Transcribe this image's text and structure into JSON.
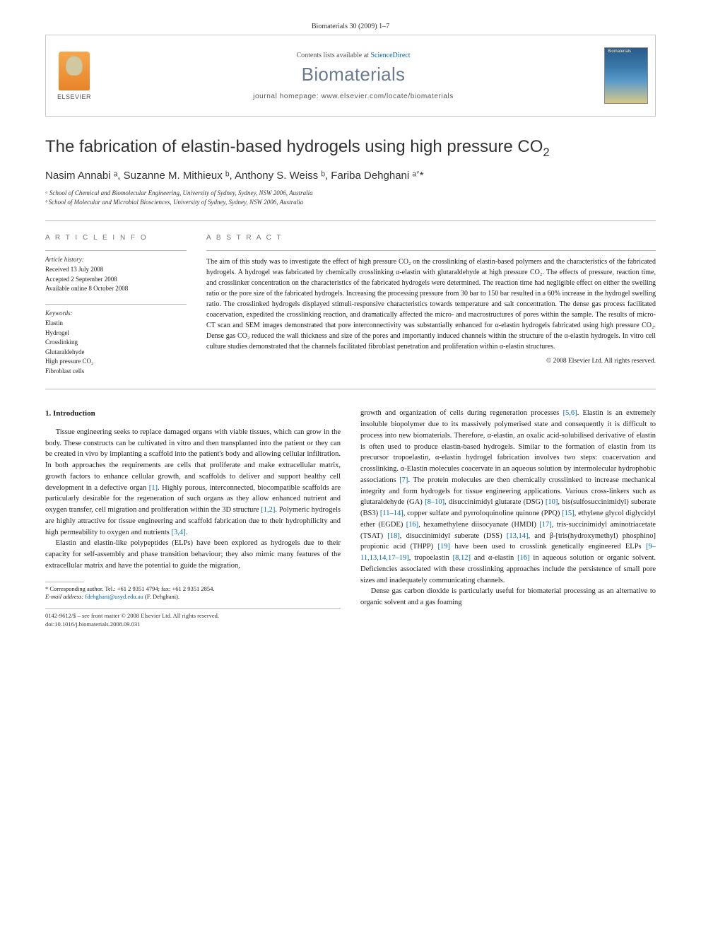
{
  "citation": "Biomaterials 30 (2009) 1–7",
  "header": {
    "publisher_label": "ELSEVIER",
    "contents_prefix": "Contents lists available at ",
    "contents_link": "ScienceDirect",
    "journal": "Biomaterials",
    "homepage_prefix": "journal homepage: ",
    "homepage_url": "www.elsevier.com/locate/biomaterials",
    "cover_label": "Biomaterials"
  },
  "article": {
    "title_html": "The fabrication of elastin-based hydrogels using high pressure CO",
    "title_sub": "2",
    "authors_list": "Nasim Annabi ᵃ, Suzanne M. Mithieux ᵇ, Anthony S. Weiss ᵇ, Fariba Dehghani ᵃ٬*",
    "affiliations": [
      "ᵃ School of Chemical and Biomolecular Engineering, University of Sydney, Sydney, NSW 2006, Australia",
      "ᵇ School of Molecular and Microbial Biosciences, University of Sydney, Sydney, NSW 2006, Australia"
    ]
  },
  "info": {
    "heading": "A R T I C L E   I N F O",
    "history_label": "Article history:",
    "received": "Received 13 July 2008",
    "accepted": "Accepted 2 September 2008",
    "online": "Available online 8 October 2008",
    "keywords_label": "Keywords:",
    "keywords": [
      "Elastin",
      "Hydrogel",
      "Crosslinking",
      "Glutaraldehyde",
      "High pressure CO₂",
      "Fibroblast cells"
    ]
  },
  "abstract": {
    "heading": "A B S T R A C T",
    "text": "The aim of this study was to investigate the effect of high pressure CO₂ on the crosslinking of elastin-based polymers and the characteristics of the fabricated hydrogels. A hydrogel was fabricated by chemically crosslinking α-elastin with glutaraldehyde at high pressure CO₂. The effects of pressure, reaction time, and crosslinker concentration on the characteristics of the fabricated hydrogels were determined. The reaction time had negligible effect on either the swelling ratio or the pore size of the fabricated hydrogels. Increasing the processing pressure from 30 bar to 150 bar resulted in a 60% increase in the hydrogel swelling ratio. The crosslinked hydrogels displayed stimuli-responsive characteristics towards temperature and salt concentration. The dense gas process facilitated coacervation, expedited the crosslinking reaction, and dramatically affected the micro- and macrostructures of pores within the sample. The results of micro-CT scan and SEM images demonstrated that pore interconnectivity was substantially enhanced for α-elastin hydrogels fabricated using high pressure CO₂. Dense gas CO₂ reduced the wall thickness and size of the pores and importantly induced channels within the structure of the α-elastin hydrogels. In vitro cell culture studies demonstrated that the channels facilitated fibroblast penetration and proliferation within α-elastin structures.",
    "copyright": "© 2008 Elsevier Ltd. All rights reserved."
  },
  "body": {
    "section_heading": "1.  Introduction",
    "col1_p1": "Tissue engineering seeks to replace damaged organs with viable tissues, which can grow in the body. These constructs can be cultivated in vitro and then transplanted into the patient or they can be created in vivo by implanting a scaffold into the patient's body and allowing cellular infiltration. In both approaches the requirements are cells that proliferate and make extracellular matrix, growth factors to enhance cellular growth, and scaffolds to deliver and support healthy cell development in a defective organ [1]. Highly porous, interconnected, biocompatible scaffolds are particularly desirable for the regeneration of such organs as they allow enhanced nutrient and oxygen transfer, cell migration and proliferation within the 3D structure [1,2]. Polymeric hydrogels are highly attractive for tissue engineering and scaffold fabrication due to their hydrophilicity and high permeability to oxygen and nutrients [3,4].",
    "col1_p2": "Elastin and elastin-like polypeptides (ELPs) have been explored as hydrogels due to their capacity for self-assembly and phase transition behaviour; they also mimic many features of the extracellular matrix and have the potential to guide the migration,",
    "col2_p1": "growth and organization of cells during regeneration processes [5,6]. Elastin is an extremely insoluble biopolymer due to its massively polymerised state and consequently it is difficult to process into new biomaterials. Therefore, α-elastin, an oxalic acid-solubilised derivative of elastin is often used to produce elastin-based hydrogels. Similar to the formation of elastin from its precursor tropoelastin, α-elastin hydrogel fabrication involves two steps: coacervation and crosslinking. α-Elastin molecules coacervate in an aqueous solution by intermolecular hydrophobic associations [7]. The protein molecules are then chemically crosslinked to increase mechanical integrity and form hydrogels for tissue engineering applications. Various cross-linkers such as glutaraldehyde (GA) [8–10], disuccinimidyl glutarate (DSG) [10], bis(sulfosuccinimidyl) suberate (BS3) [11–14], copper sulfate and pyrroloquinoline quinone (PPQ) [15], ethylene glycol diglycidyl ether (EGDE) [16], hexamethylene diisocyanate (HMDI) [17], tris-succinimidyl aminotriacetate (TSAT) [18], disuccinimidyl suberate (DSS) [13,14], and β-[tris(hydroxymethyl) phosphino] propionic acid (THPP) [19] have been used to crosslink genetically engineered ELPs [9–11,13,14,17–19], tropoelastin [8,12] and α-elastin [16] in aqueous solution or organic solvent. Deficiencies associated with these crosslinking approaches include the persistence of small pore sizes and inadequately communicating channels.",
    "col2_p2": "Dense gas carbon dioxide is particularly useful for biomaterial processing as an alternative to organic solvent and a gas foaming"
  },
  "footnotes": {
    "corr": "* Corresponding author. Tel.: +61 2 9351  4794; fax: +61 2 9351 2854.",
    "email_label": "E-mail address: ",
    "email": "fdehghani@usyd.edu.au",
    "email_suffix": " (F. Dehghani)."
  },
  "bottom": {
    "line1": "0142-9612/$ – see front matter © 2008 Elsevier Ltd. All rights reserved.",
    "line2": "doi:10.1016/j.biomaterials.2008.09.031"
  },
  "colors": {
    "link": "#0066aa",
    "journal_name": "#6b7a8f",
    "rule": "#b5b5b5"
  }
}
